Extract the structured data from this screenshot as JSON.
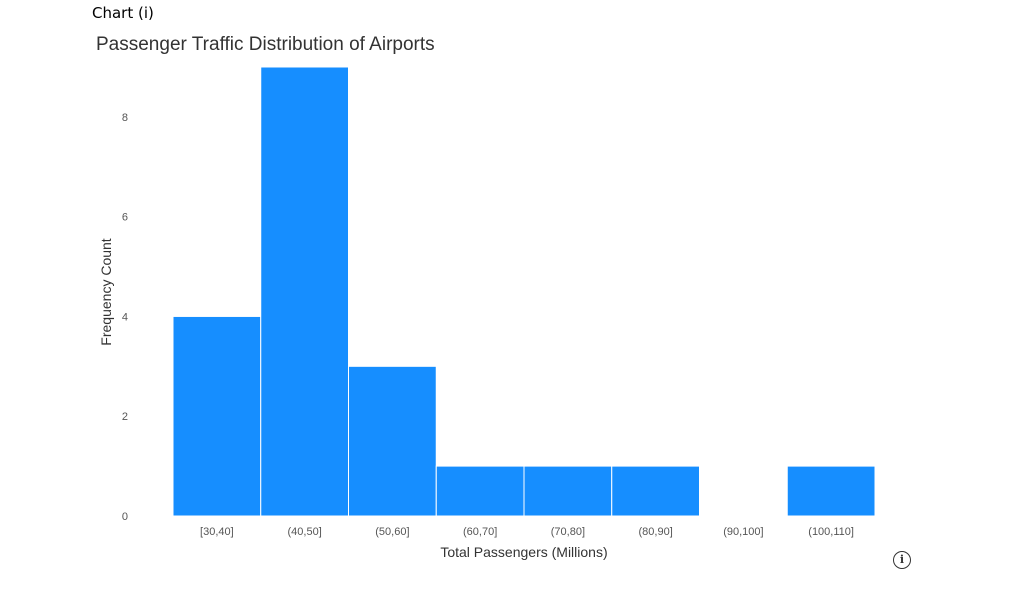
{
  "page": {
    "chart_label": "Chart (i)",
    "info_icon": "info-icon"
  },
  "chart_data": {
    "type": "bar",
    "title": "Passenger Traffic Distribution of Airports",
    "xlabel": "Total Passengers (Millions)",
    "ylabel": "Frequency Count",
    "categories": [
      "[30,40]",
      "(40,50]",
      "(50,60]",
      "(60,70]",
      "(70,80]",
      "(80,90]",
      "(90,100]",
      "(100,110]"
    ],
    "values": [
      4,
      9,
      3,
      1,
      1,
      1,
      0,
      1
    ],
    "yticks": [
      0,
      2,
      4,
      6,
      8
    ],
    "ylim": [
      0,
      9
    ],
    "grid": false,
    "legend": "none",
    "bar_color": "#168EFF",
    "bar_edge_color": "#FFFFFF"
  }
}
